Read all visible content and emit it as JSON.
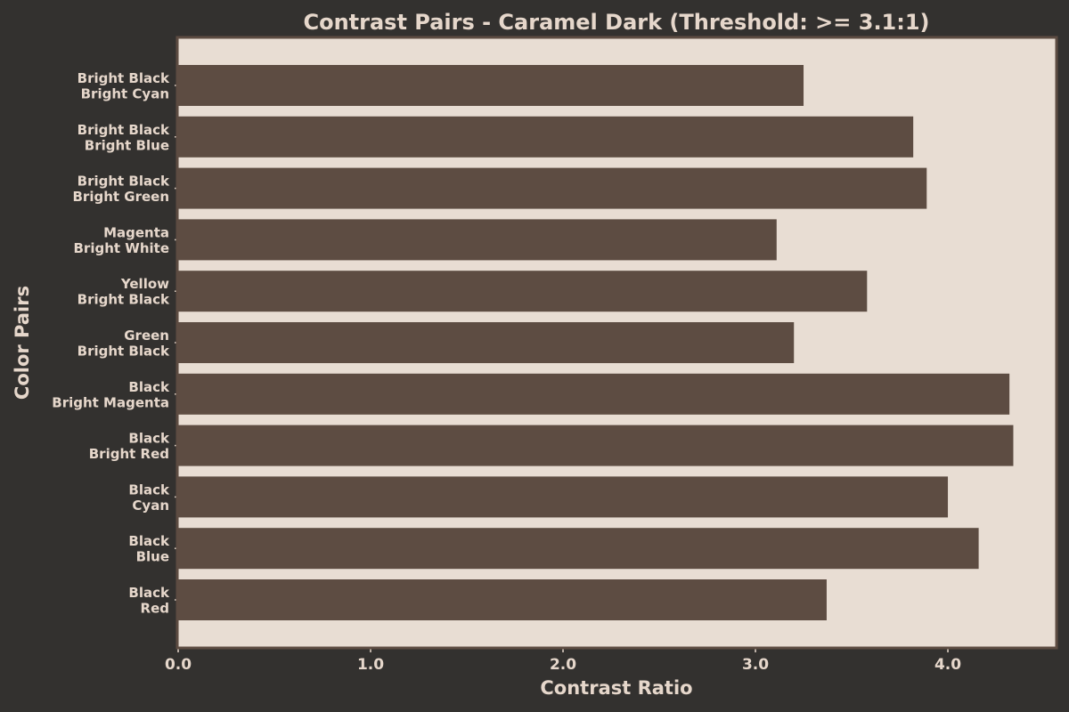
{
  "colors": {
    "page_background": "#33312f",
    "plot_background": "#e8ddd3",
    "bar_fill": "#5d4c42",
    "frame": "#5d4c42",
    "text": "#e6d7cb"
  },
  "chart_data": {
    "type": "bar",
    "orientation": "horizontal",
    "title": "Contrast Pairs - Caramel Dark (Threshold: >= 3.1:1)",
    "xlabel": "Contrast Ratio",
    "ylabel": "Color Pairs",
    "xlim": [
      0,
      4.56
    ],
    "xticks": [
      0,
      1,
      2,
      3,
      4
    ],
    "xtick_labels": [
      "0.0",
      "1.0",
      "2.0",
      "3.0",
      "4.0"
    ],
    "grid": false,
    "categories": [
      [
        "Bright Black",
        "Bright Cyan"
      ],
      [
        "Bright Black",
        "Bright Blue"
      ],
      [
        "Bright Black",
        "Bright Green"
      ],
      [
        "Magenta",
        "Bright White"
      ],
      [
        "Yellow",
        "Bright Black"
      ],
      [
        "Green",
        "Bright Black"
      ],
      [
        "Black",
        "Bright Magenta"
      ],
      [
        "Black",
        "Bright Red"
      ],
      [
        "Black",
        "Cyan"
      ],
      [
        "Black",
        "Blue"
      ],
      [
        "Black",
        "Red"
      ]
    ],
    "values": [
      3.25,
      3.82,
      3.89,
      3.11,
      3.58,
      3.2,
      4.32,
      4.34,
      4.0,
      4.16,
      3.37
    ]
  }
}
